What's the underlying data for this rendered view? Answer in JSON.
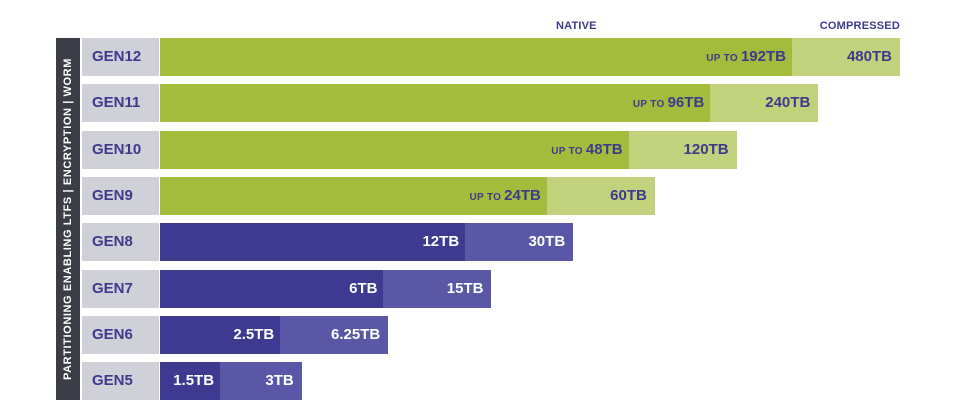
{
  "chart_data": {
    "type": "bar",
    "orientation": "horizontal",
    "stacked": "overlay",
    "side_label": "PARTITIONING ENABLING LTFS  |  ENCRYPTION  |  WORM",
    "series": [
      {
        "name": "NATIVE"
      },
      {
        "name": "COMPRESSED"
      }
    ],
    "unit": "TB",
    "rows": [
      {
        "gen": "GEN12",
        "native": 192,
        "compressed": 480,
        "native_label": "192TB",
        "compressed_label": "480TB",
        "prefix": "UP TO",
        "color": "green"
      },
      {
        "gen": "GEN11",
        "native": 96,
        "compressed": 240,
        "native_label": "96TB",
        "compressed_label": "240TB",
        "prefix": "UP TO",
        "color": "green"
      },
      {
        "gen": "GEN10",
        "native": 48,
        "compressed": 120,
        "native_label": "48TB",
        "compressed_label": "120TB",
        "prefix": "UP TO",
        "color": "green"
      },
      {
        "gen": "GEN9",
        "native": 24,
        "compressed": 60,
        "native_label": "24TB",
        "compressed_label": "60TB",
        "prefix": "UP TO",
        "color": "green"
      },
      {
        "gen": "GEN8",
        "native": 12,
        "compressed": 30,
        "native_label": "12TB",
        "compressed_label": "30TB",
        "prefix": "",
        "color": "purple"
      },
      {
        "gen": "GEN7",
        "native": 6,
        "compressed": 15,
        "native_label": "6TB",
        "compressed_label": "15TB",
        "prefix": "",
        "color": "purple"
      },
      {
        "gen": "GEN6",
        "native": 2.5,
        "compressed": 6.25,
        "native_label": "2.5TB",
        "compressed_label": "6.25TB",
        "prefix": "",
        "color": "purple"
      },
      {
        "gen": "GEN5",
        "native": 1.5,
        "compressed": 3,
        "native_label": "1.5TB",
        "compressed_label": "3TB",
        "prefix": "",
        "color": "purple"
      }
    ],
    "colors": {
      "green_native": "#a3bc3b",
      "green_compressed": "#c2d27c",
      "purple_native": "#3e3a92",
      "purple_compressed": "#5a58a6",
      "gen_cell": "#cfd0d8",
      "side_bar": "#3a3d45",
      "text_dark": "#3d3a8c"
    }
  }
}
